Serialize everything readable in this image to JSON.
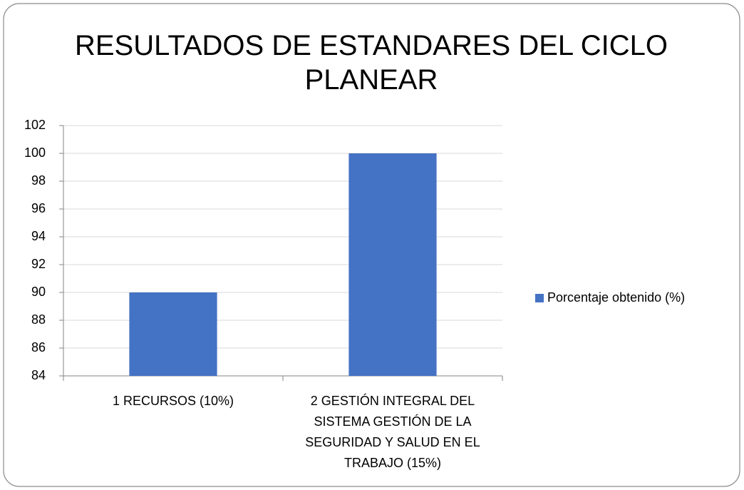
{
  "chart_data": {
    "type": "bar",
    "title": "RESULTADOS DE ESTANDARES DEL CICLO PLANEAR",
    "categories": [
      "1 RECURSOS (10%)",
      "2 GESTIÓN INTEGRAL DEL SISTEMA GESTIÓN DE LA SEGURIDAD Y SALUD EN EL TRABAJO (15%)"
    ],
    "series": [
      {
        "name": "Porcentaje obtenido (%)",
        "color": "#4472c4",
        "values": [
          90,
          100
        ]
      }
    ],
    "ylim": [
      84,
      102
    ],
    "yticks": [
      84,
      86,
      88,
      90,
      92,
      94,
      96,
      98,
      100,
      102
    ],
    "grid": true,
    "legend": "right"
  }
}
